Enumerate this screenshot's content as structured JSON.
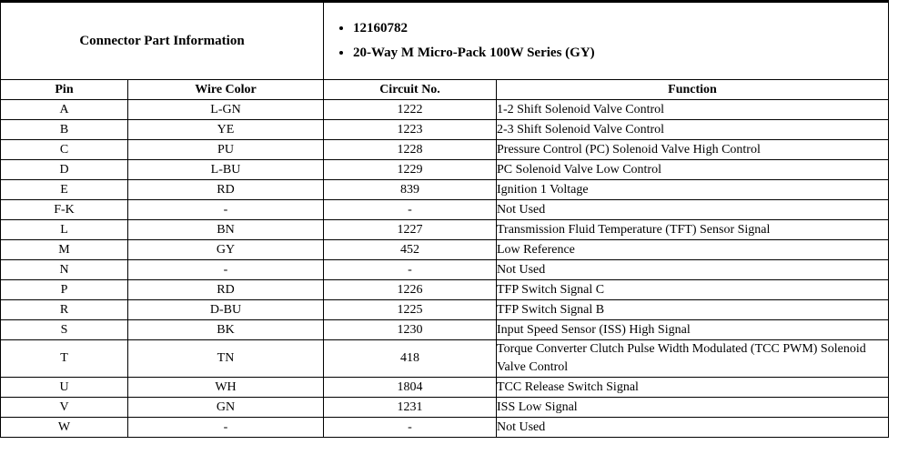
{
  "connector_info": {
    "title": "Connector Part Information",
    "bullets": [
      "12160782",
      "20-Way M Micro-Pack 100W Series (GY)"
    ]
  },
  "pin_table": {
    "headers": [
      "Pin",
      "Wire Color",
      "Circuit No.",
      "Function"
    ],
    "rows": [
      [
        "A",
        "L-GN",
        "1222",
        "1-2 Shift Solenoid Valve Control"
      ],
      [
        "B",
        "YE",
        "1223",
        "2-3 Shift Solenoid Valve Control"
      ],
      [
        "C",
        "PU",
        "1228",
        "Pressure Control (PC) Solenoid Valve High Control"
      ],
      [
        "D",
        "L-BU",
        "1229",
        "PC Solenoid Valve Low Control"
      ],
      [
        "E",
        "RD",
        "839",
        "Ignition 1 Voltage"
      ],
      [
        "F-K",
        "-",
        "-",
        "Not Used"
      ],
      [
        "L",
        "BN",
        "1227",
        "Transmission Fluid Temperature (TFT) Sensor Signal"
      ],
      [
        "M",
        "GY",
        "452",
        "Low Reference"
      ],
      [
        "N",
        "-",
        "-",
        "Not Used"
      ],
      [
        "P",
        "RD",
        "1226",
        "TFP Switch Signal C"
      ],
      [
        "R",
        "D-BU",
        "1225",
        "TFP Switch Signal B"
      ],
      [
        "S",
        "BK",
        "1230",
        "Input Speed Sensor (ISS) High Signal"
      ],
      [
        "T",
        "TN",
        "418",
        "Torque Converter Clutch Pulse Width Modulated (TCC PWM) Solenoid Valve Control"
      ],
      [
        "U",
        "WH",
        "1804",
        "TCC Release Switch Signal"
      ],
      [
        "V",
        "GN",
        "1231",
        "ISS Low Signal"
      ],
      [
        "W",
        "-",
        "-",
        "Not Used"
      ]
    ]
  }
}
